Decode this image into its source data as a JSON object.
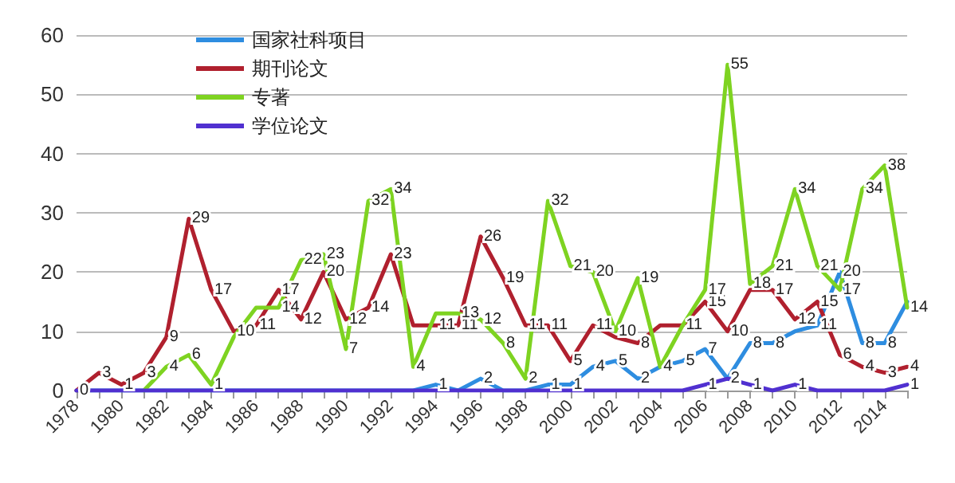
{
  "chart_data": {
    "type": "line",
    "categories": [
      "1978",
      null,
      "1980",
      null,
      "1982",
      null,
      "1984",
      null,
      "1986",
      null,
      "1988",
      null,
      "1990",
      null,
      "1992",
      null,
      "1994",
      null,
      "1996",
      null,
      "1998",
      null,
      "2000",
      null,
      "2002",
      null,
      "2004",
      null,
      "2006",
      null,
      "2008",
      null,
      "2010",
      null,
      "2012",
      null,
      "2014",
      null
    ],
    "series": [
      {
        "name": "国家社科项目",
        "color": "#2e8de0",
        "values": [
          0,
          0,
          0,
          0,
          0,
          0,
          0,
          0,
          0,
          0,
          0,
          0,
          0,
          0,
          0,
          0,
          1,
          0,
          2,
          0,
          0,
          1,
          1,
          4,
          5,
          2,
          4,
          5,
          7,
          2,
          8,
          8,
          10,
          11,
          20,
          8,
          8,
          15
        ],
        "value_labels": [
          null,
          null,
          null,
          null,
          null,
          null,
          null,
          null,
          null,
          null,
          null,
          null,
          null,
          null,
          null,
          null,
          "1",
          null,
          "2",
          null,
          null,
          "1",
          "1",
          "4",
          "5",
          "2",
          null,
          "5",
          "7",
          "2",
          "8",
          "8",
          null,
          "11",
          "20",
          "8",
          "8",
          null
        ]
      },
      {
        "name": "期刊论文",
        "color": "#b0202e",
        "values": [
          0,
          3,
          1,
          3,
          9,
          29,
          17,
          10,
          11,
          17,
          12,
          20,
          12,
          14,
          23,
          11,
          11,
          11,
          26,
          19,
          11,
          11,
          5,
          11,
          9,
          8,
          11,
          11,
          15,
          10,
          17,
          17,
          12,
          15,
          6,
          4,
          3,
          4
        ],
        "value_labels": [
          "0",
          "3",
          "1",
          "3",
          "9",
          "29",
          "17",
          "10",
          "11",
          "17",
          "12",
          "20",
          "12",
          "14",
          "23",
          null,
          "11",
          "11",
          "26",
          "19",
          "11",
          "11",
          "5",
          "11",
          null,
          "8",
          null,
          "11",
          "15",
          "10",
          null,
          "17",
          "12",
          "15",
          "6",
          "4",
          "3",
          "4"
        ]
      },
      {
        "name": "专著",
        "color": "#7ed321",
        "values": [
          null,
          null,
          null,
          0,
          4,
          6,
          1,
          9,
          14,
          14,
          22,
          23,
          7,
          32,
          34,
          4,
          13,
          13,
          12,
          8,
          2,
          32,
          21,
          20,
          10,
          19,
          4,
          11,
          17,
          55,
          18,
          21,
          34,
          21,
          17,
          34,
          38,
          14
        ],
        "value_labels": [
          null,
          null,
          null,
          null,
          "4",
          "6",
          "1",
          null,
          null,
          "14",
          "22",
          "23",
          "7",
          "32",
          "34",
          "4",
          null,
          "13",
          "12",
          "8",
          "2",
          "32",
          "21",
          "20",
          "10",
          "19",
          "4",
          null,
          "17",
          "55",
          "18",
          "21",
          "34",
          "21",
          "17",
          "34",
          "38",
          "14"
        ]
      },
      {
        "name": "学位论文",
        "color": "#5030d0",
        "values": [
          0,
          0,
          0,
          0,
          0,
          0,
          0,
          0,
          0,
          0,
          0,
          0,
          0,
          0,
          0,
          0,
          0,
          0,
          0,
          0,
          0,
          0,
          0,
          0,
          0,
          0,
          0,
          0,
          1,
          2,
          1,
          0,
          1,
          0,
          0,
          0,
          0,
          1
        ],
        "value_labels": [
          null,
          null,
          null,
          null,
          null,
          null,
          null,
          null,
          null,
          null,
          null,
          null,
          null,
          null,
          null,
          null,
          null,
          null,
          null,
          null,
          null,
          null,
          null,
          null,
          null,
          null,
          null,
          null,
          "1",
          null,
          "1",
          null,
          "1",
          null,
          null,
          null,
          null,
          "1"
        ]
      }
    ],
    "ylim": [
      0,
      60
    ],
    "yticks": [
      0,
      10,
      20,
      30,
      40,
      50,
      60
    ],
    "grid": "y",
    "legend": "top left",
    "marker": "none",
    "line_style": "solid"
  }
}
